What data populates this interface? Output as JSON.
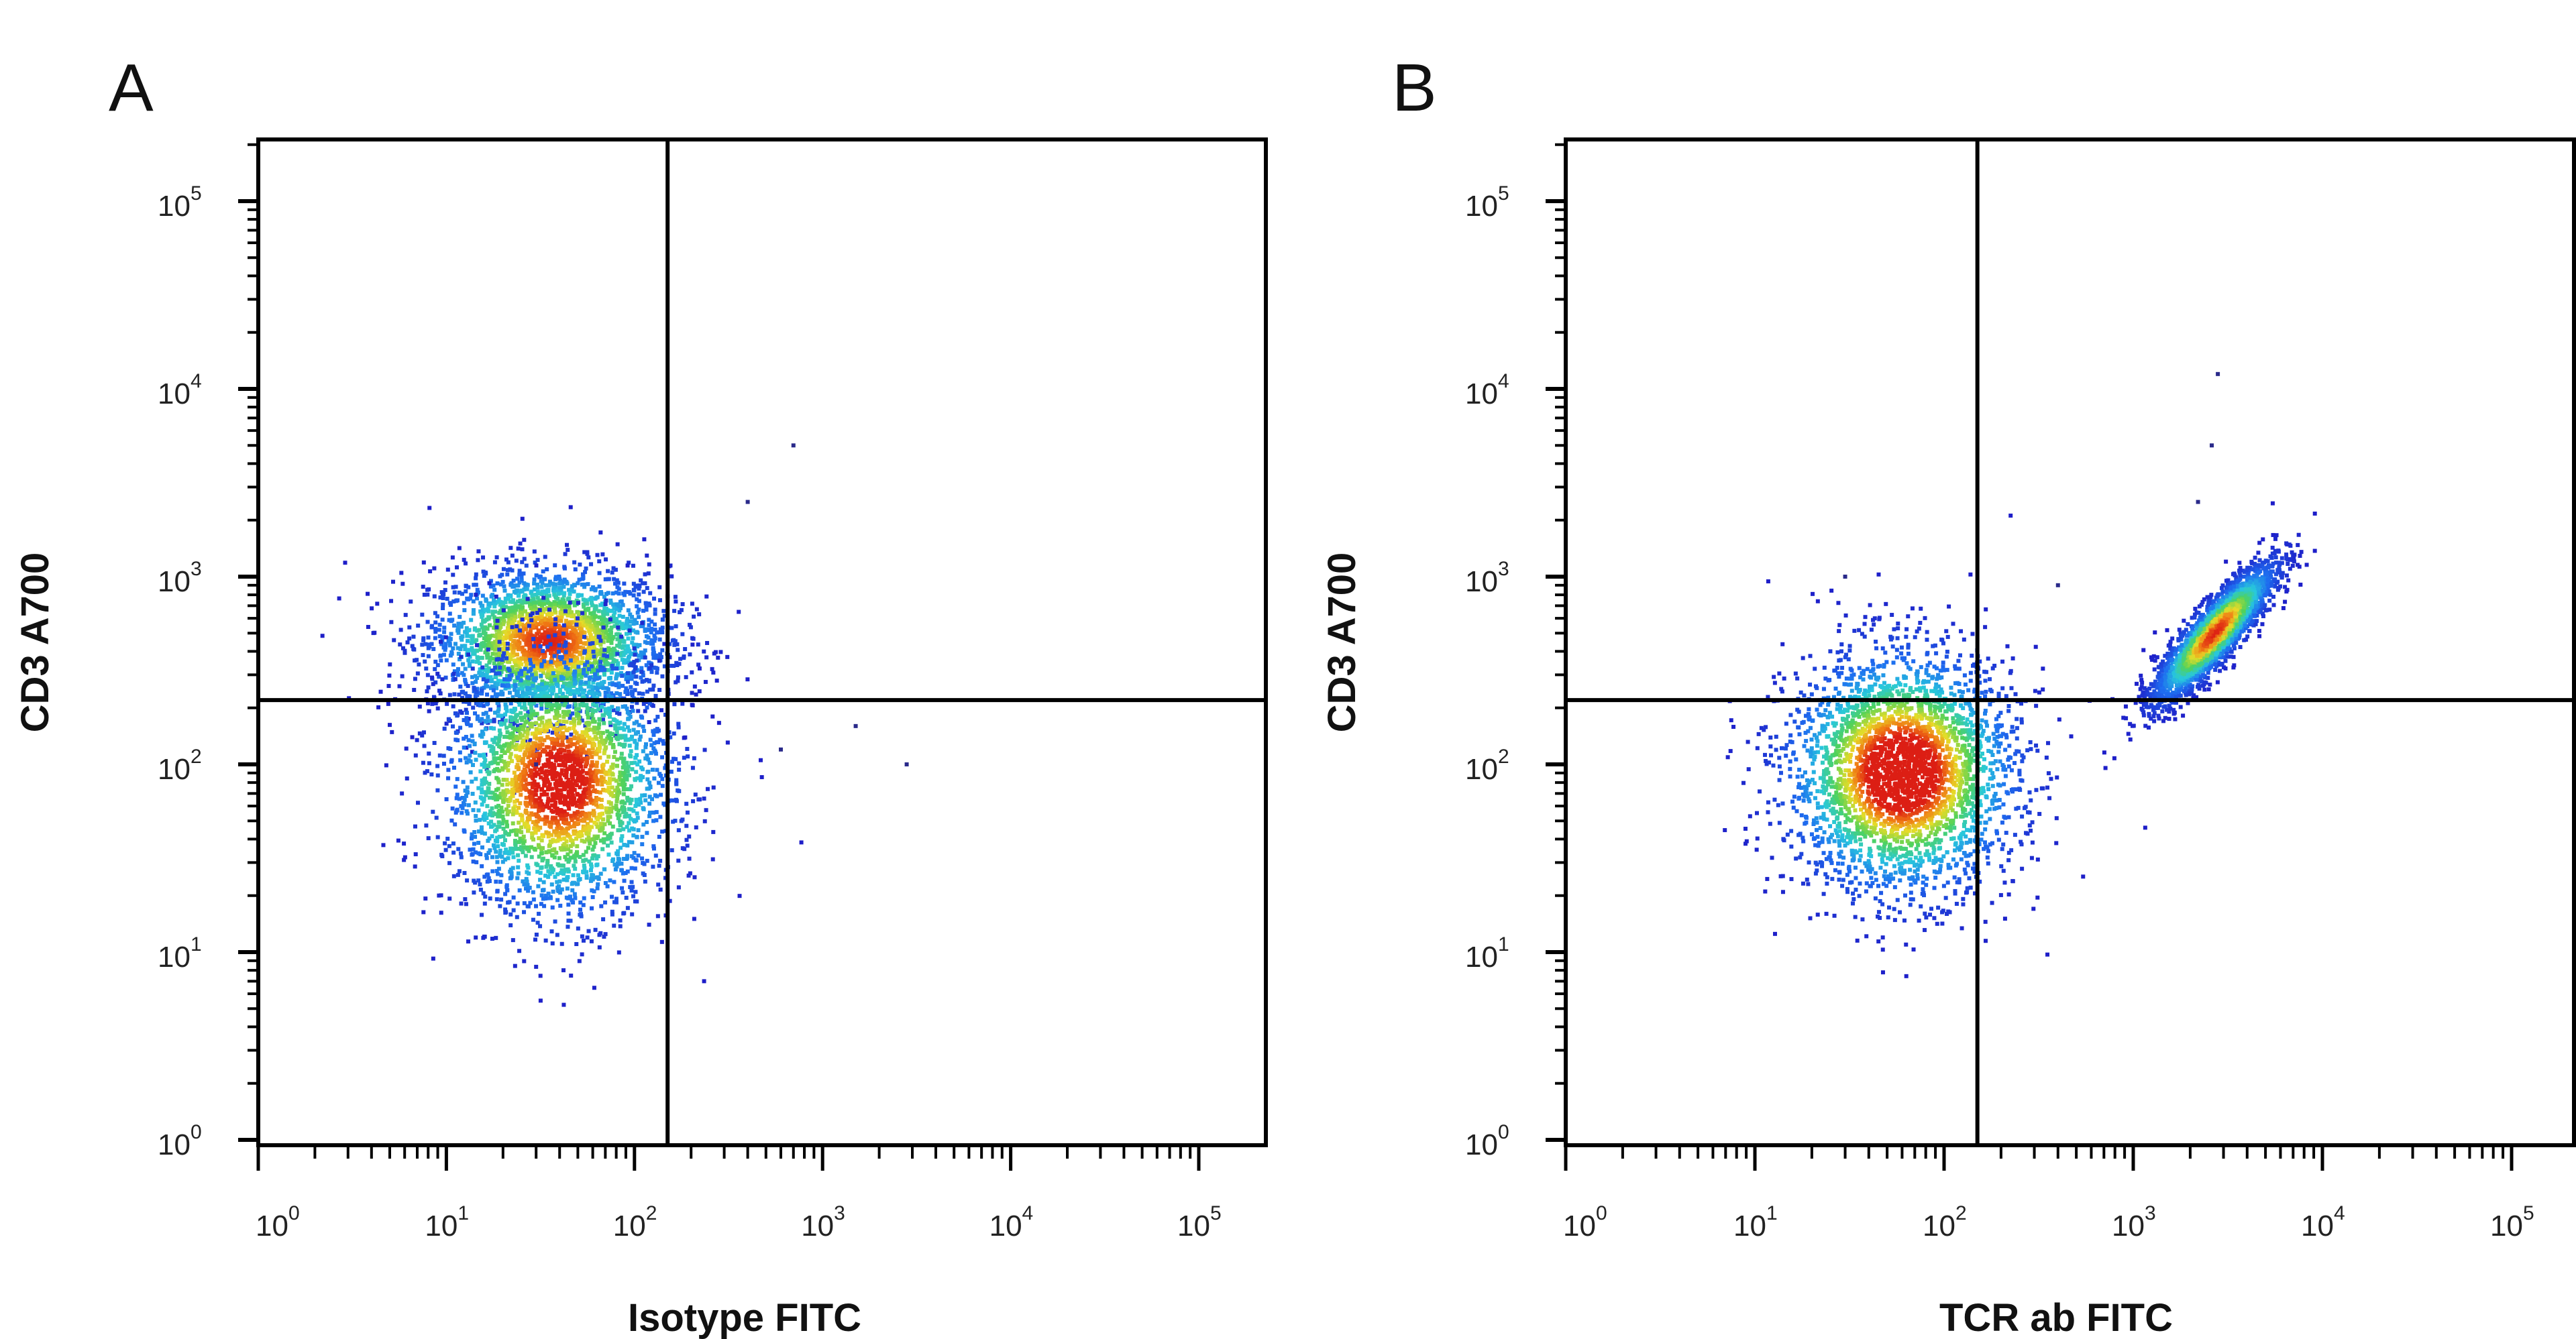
{
  "chart_data": [
    {
      "type": "scatter",
      "panel": "A",
      "title": "",
      "xlabel": "Isotype FITC",
      "ylabel": "CD3 A700",
      "xscale": "log",
      "yscale": "log",
      "xlim": [
        0.55,
        200000
      ],
      "ylim": [
        0.9,
        200000
      ],
      "x_ticks": [
        "10^0",
        "10^1",
        "10^2",
        "10^3",
        "10^4",
        "10^5"
      ],
      "y_ticks": [
        "10^0",
        "10^1",
        "10^2",
        "10^3",
        "10^4",
        "10^5"
      ],
      "gates": {
        "x": 150,
        "y": 220
      },
      "populations": [
        {
          "name": "CD3+ upper-left cluster",
          "center_x": 35,
          "center_y": 450,
          "spread_log_x": 0.32,
          "spread_log_y": 0.2,
          "rel_density": 1.0
        },
        {
          "name": "CD3- lower-left cluster",
          "center_x": 40,
          "center_y": 80,
          "spread_log_x": 0.3,
          "spread_log_y": 0.35,
          "rel_density": 1.1
        }
      ],
      "outliers": [
        [
          700,
          5000
        ],
        [
          400,
          2500
        ],
        [
          30,
          100
        ],
        [
          1500,
          160
        ],
        [
          2800,
          100
        ],
        [
          600,
          120
        ]
      ]
    },
    {
      "type": "scatter",
      "panel": "B",
      "title": "",
      "xlabel": "TCR ab FITC",
      "ylabel": "CD3 A700",
      "xscale": "log",
      "yscale": "log",
      "xlim": [
        0.55,
        200000
      ],
      "ylim": [
        0.9,
        200000
      ],
      "x_ticks": [
        "10^0",
        "10^1",
        "10^2",
        "10^3",
        "10^4",
        "10^5"
      ],
      "y_ticks": [
        "10^0",
        "10^1",
        "10^2",
        "10^3",
        "10^4",
        "10^5"
      ],
      "gates": {
        "x": 150,
        "y": 220
      },
      "populations": [
        {
          "name": "TCRab+ CD3+ double positive",
          "center_x": 2700,
          "center_y": 500,
          "spread_log_x": 0.16,
          "spread_log_y": 0.2,
          "rel_density": 1.0,
          "correlated": true
        },
        {
          "name": "TCRab- CD3- double negative",
          "center_x": 60,
          "center_y": 90,
          "spread_log_x": 0.3,
          "spread_log_y": 0.32,
          "rel_density": 1.2
        }
      ],
      "outliers": [
        [
          2800,
          12000
        ],
        [
          2600,
          5000
        ],
        [
          2200,
          2500
        ],
        [
          30,
          1000
        ],
        [
          400,
          900
        ]
      ]
    }
  ],
  "figure": {
    "panels": [
      {
        "letter": "A",
        "xlabel": "Isotype FITC",
        "ylabel": "CD3 A700"
      },
      {
        "letter": "B",
        "xlabel": "TCR ab FITC",
        "ylabel": "CD3 A700"
      }
    ],
    "tick_base": "10",
    "tick_exponents": [
      "0",
      "1",
      "2",
      "3",
      "4",
      "5"
    ]
  }
}
